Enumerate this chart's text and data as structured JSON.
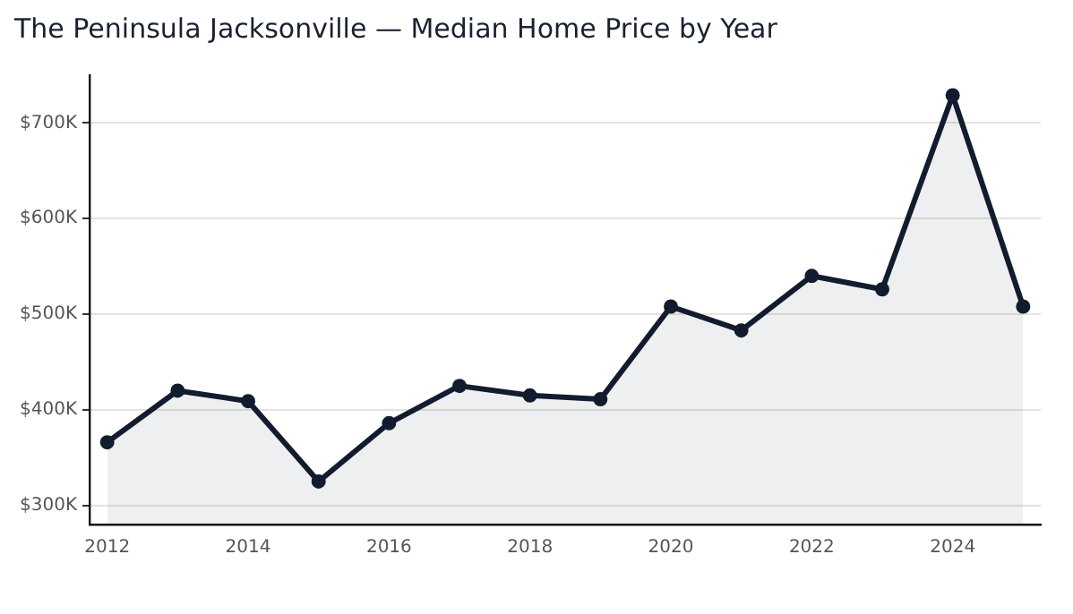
{
  "chart_data": {
    "type": "area",
    "title": "The Peninsula Jacksonville — Median Home Price by Year",
    "x": [
      2012,
      2013,
      2014,
      2015,
      2016,
      2017,
      2018,
      2019,
      2020,
      2021,
      2022,
      2023,
      2024,
      2025
    ],
    "series": [
      {
        "color": "#111c2e",
        "values": [
          366,
          420,
          409,
          325,
          386,
          425,
          415,
          411,
          508,
          483,
          540,
          526,
          729,
          508
        ]
      }
    ],
    "xlim": [
      2011.75,
      2025.25
    ],
    "xticks": [
      2012,
      2014,
      2016,
      2018,
      2020,
      2022,
      2024
    ],
    "ylim": [
      280,
      750
    ],
    "yticks": [
      {
        "value": 300,
        "label": "$300K"
      },
      {
        "value": 400,
        "label": "$400K"
      },
      {
        "value": 500,
        "label": "$500K"
      },
      {
        "value": 600,
        "label": "$600K"
      },
      {
        "value": 700,
        "label": "$700K"
      }
    ],
    "grid": "y",
    "marker": "circle",
    "line_style": "solid",
    "legend": false
  }
}
